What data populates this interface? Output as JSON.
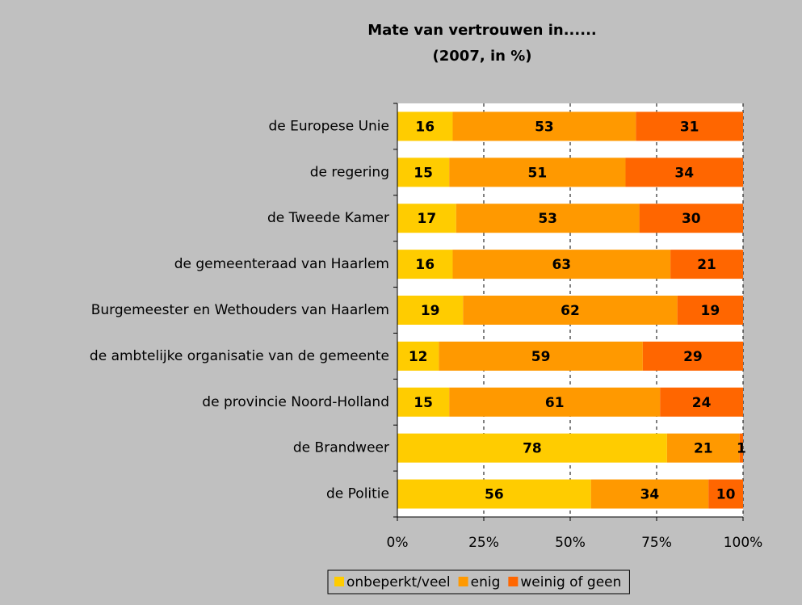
{
  "chart_data": {
    "type": "stacked-bar-horizontal-percent",
    "title": "Mate van vertrouwen in......",
    "subtitle": "(2007, in %)",
    "categories": [
      "de Europese Unie",
      "de regering",
      "de Tweede Kamer",
      "de gemeenteraad van Haarlem",
      "Burgemeester en Wethouders van Haarlem",
      "de ambtelijke organisatie van de gemeente",
      "de provincie Noord-Holland",
      "de Brandweer",
      "de Politie"
    ],
    "series": [
      {
        "name": "onbeperkt/veel",
        "color": "#ffcc00",
        "values": [
          16,
          15,
          17,
          16,
          19,
          12,
          15,
          78,
          56
        ]
      },
      {
        "name": "enig",
        "color": "#ff9900",
        "values": [
          53,
          51,
          53,
          63,
          62,
          59,
          61,
          21,
          34
        ]
      },
      {
        "name": "weinig of geen",
        "color": "#ff6600",
        "values": [
          31,
          34,
          30,
          21,
          19,
          29,
          24,
          1,
          10
        ]
      }
    ],
    "xlim": [
      0,
      100
    ],
    "xticks": [
      {
        "value": 0,
        "label": "0%"
      },
      {
        "value": 25,
        "label": "25%"
      },
      {
        "value": 50,
        "label": "50%"
      },
      {
        "value": 75,
        "label": "75%"
      },
      {
        "value": 100,
        "label": "100%"
      }
    ],
    "grid": true,
    "legend": "bottom"
  }
}
